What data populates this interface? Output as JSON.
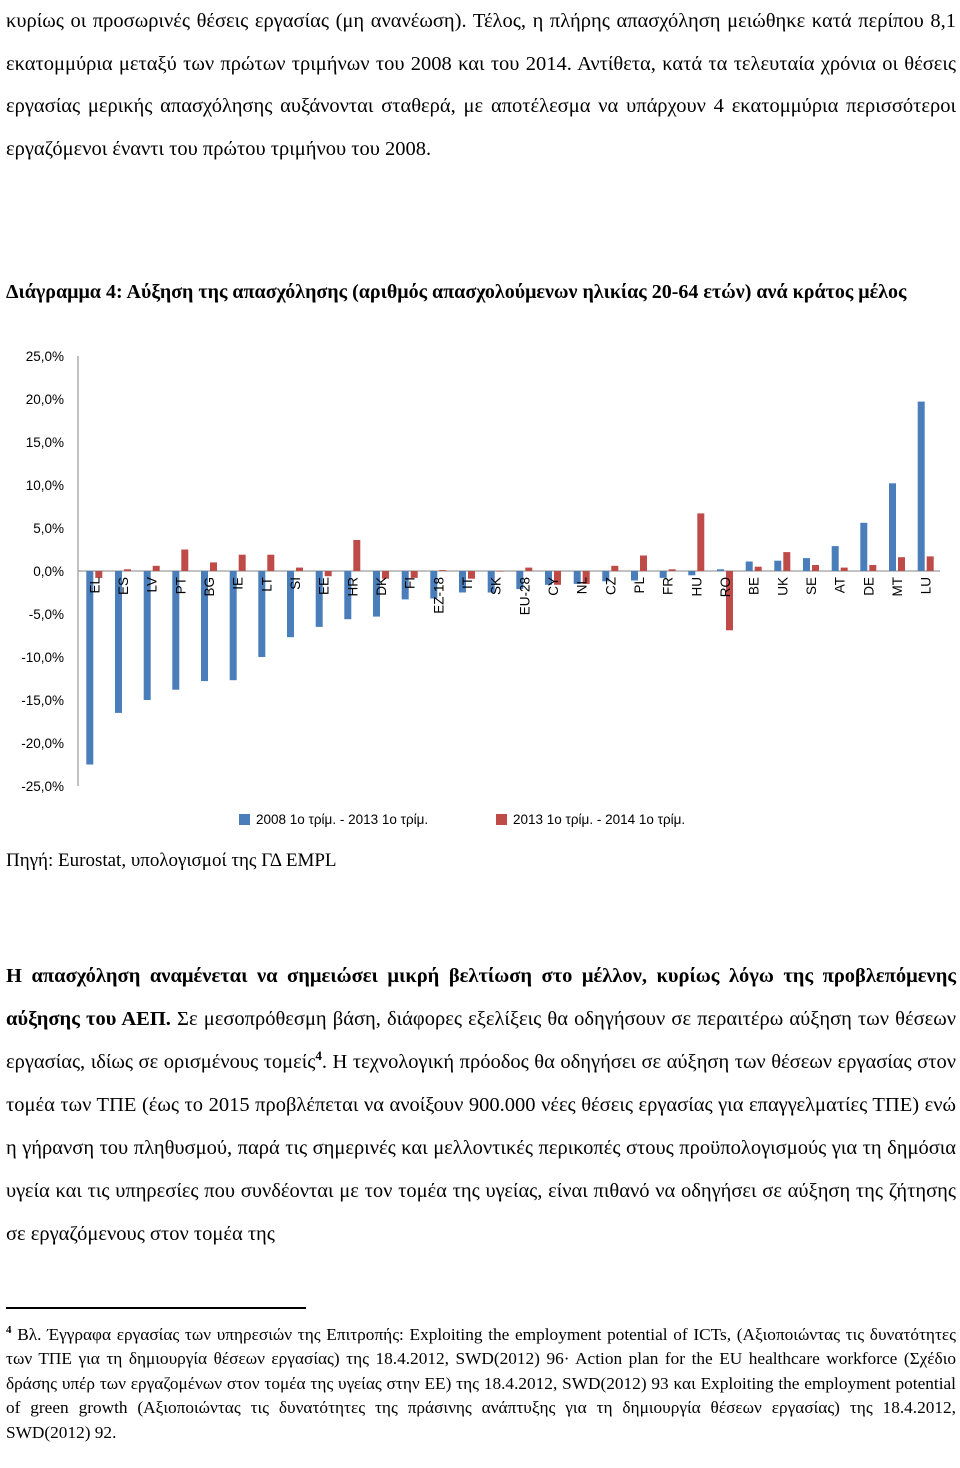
{
  "intro": {
    "text": "κυρίως οι προσωρινές θέσεις εργασίας (μη ανανέωση). Τέλος, η πλήρης απασχόληση μειώθηκε κατά περίπου 8,1 εκατομμύρια μεταξύ των πρώτων τριμήνων του 2008 και του 2014. Αντίθετα, κατά τα τελευταία χρόνια οι θέσεις εργασίας μερικής απασχόλησης αυξάνονται σταθερά, με αποτέλεσμα να υπάρχουν 4 εκατομμύρια περισσότεροι εργαζόμενοι έναντι του πρώτου τριμήνου του 2008."
  },
  "caption": "Διάγραμμα 4: Αύξηση της απασχόλησης (αριθμός απασχολούμενων ηλικίας 20-64 ετών) ανά κράτος μέλος",
  "source": "Πηγή: Eurostat, υπολογισμοί της ΓΔ EMPL",
  "body": {
    "lead": "Η απασχόληση αναμένεται να σημειώσει μικρή βελτίωση στο μέλλον, κυρίως λόγω της προβλεπόμενης αύξησης του ΑΕΠ.",
    "text_a": " Σε μεσοπρόθεσμη βάση, διάφορες εξελίξεις θα οδηγήσουν σε περαιτέρω αύξηση των θέσεων εργασίας, ιδίως σε ορισμένους τομείς",
    "footnote_ref": "4",
    "text_b": ". Η τεχνολογική πρόοδος θα οδηγήσει σε αύξηση των θέσεων εργασίας στον τομέα των ΤΠΕ (έως το 2015 προβλέπεται να ανοίξουν 900.000 νέες θέσεις εργασίας για επαγγελματίες ΤΠΕ) ενώ η γήρανση του πληθυσμού, παρά τις σημερινές και μελλοντικές περικοπές στους προϋπολογισμούς για τη δημόσια υγεία και τις υπηρεσίες που συνδέονται με τον τομέα της υγείας, είναι πιθανό να οδηγήσει σε αύξηση της ζήτησης σε εργαζόμενους στον τομέα της"
  },
  "footnote": {
    "marker": "4",
    "text": " Βλ. Έγγραφα εργασίας των υπηρεσιών της Επιτροπής: Exploiting the employment potential of ICTs, (Αξιοποιώντας τις δυνατότητες των ΤΠΕ για τη δημιουργία θέσεων εργασίας) της 18.4.2012, SWD(2012) 96· Action plan for the EU healthcare workforce (Σχέδιο δράσης υπέρ των εργαζομένων στον τομέα της υγείας στην ΕΕ) της 18.4.2012, SWD(2012) 93 και Exploiting the employment potential of green growth (Αξιοποιώντας τις δυνατότητες της πράσινης ανάπτυξης για τη δημιουργία θέσεων εργασίας) της 18.4.2012, SWD(2012) 92."
  },
  "colors": {
    "series1": "#4a7ebb",
    "series2": "#be4b48"
  },
  "chart_data": {
    "type": "bar",
    "ylim": [
      -25,
      25
    ],
    "yticks": [
      "25,0%",
      "20,0%",
      "15,0%",
      "10,0%",
      "5,0%",
      "0,0%",
      "-5,0%",
      "-10,0%",
      "-15,0%",
      "-20,0%",
      "-25,0%"
    ],
    "ytick_values": [
      25,
      20,
      15,
      10,
      5,
      0,
      -5,
      -10,
      -15,
      -20,
      -25
    ],
    "categories": [
      "EL",
      "ES",
      "LV",
      "PT",
      "BG",
      "IE",
      "LT",
      "SI",
      "EE",
      "HR",
      "DK",
      "FI",
      "EZ-18",
      "IT",
      "SK",
      "EU-28",
      "CY",
      "NL",
      "CZ",
      "PL",
      "FR",
      "HU",
      "RO",
      "BE",
      "UK",
      "SE",
      "AT",
      "DE",
      "MT",
      "LU"
    ],
    "series": [
      {
        "name": "2008 1ο τρίμ. - 2013 1ο τρίμ.",
        "values": [
          -22.5,
          -16.5,
          -15.0,
          -13.8,
          -12.8,
          -12.7,
          -10.0,
          -7.7,
          -6.5,
          -5.6,
          -5.3,
          -3.3,
          -3.2,
          -2.5,
          -2.5,
          -2.1,
          -1.6,
          -1.5,
          -1.2,
          -1.1,
          -0.8,
          -0.5,
          0.2,
          1.1,
          1.2,
          1.5,
          2.9,
          5.6,
          10.2,
          19.7
        ]
      },
      {
        "name": "2013 1ο τρίμ. - 2014 1ο τρίμ.",
        "values": [
          -0.8,
          0.2,
          0.6,
          2.5,
          1.0,
          1.9,
          1.9,
          0.4,
          -0.6,
          3.6,
          -0.9,
          -0.8,
          0.1,
          -0.9,
          0.0,
          0.4,
          -1.6,
          -1.5,
          0.6,
          1.8,
          0.2,
          6.7,
          -6.9,
          0.5,
          2.2,
          0.7,
          0.4,
          0.7,
          1.6,
          1.7
        ]
      }
    ]
  }
}
